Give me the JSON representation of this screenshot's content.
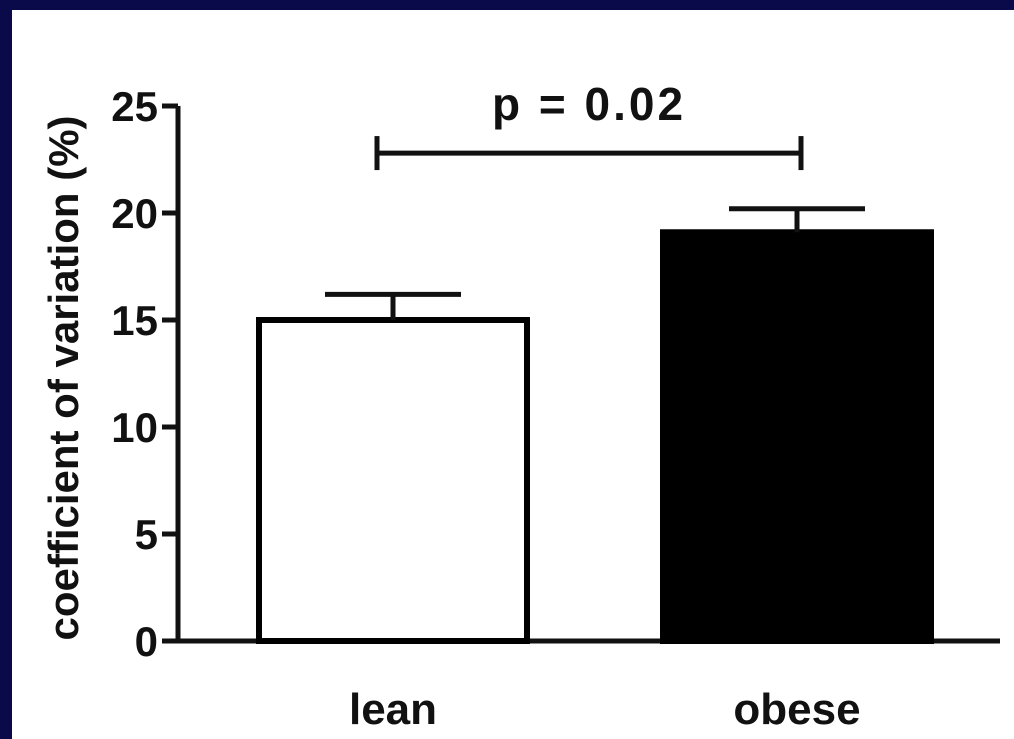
{
  "chart_data": {
    "type": "bar",
    "categories": [
      "lean",
      "obese"
    ],
    "values": [
      15.0,
      19.1
    ],
    "errors": [
      1.2,
      1.1
    ],
    "bar_colors": [
      "#ffffff",
      "#000000"
    ],
    "bar_edge_color": "#000000",
    "ylabel": "coefficient of variation (%)",
    "xlabel": "",
    "ylim": [
      0,
      25
    ],
    "yticks": [
      0,
      5,
      10,
      15,
      20,
      25
    ],
    "ytick_labels": [
      "0",
      "5",
      "10",
      "15",
      "20",
      "25"
    ],
    "grid": false,
    "legend": "none",
    "annotation": {
      "text": "p = 0.02",
      "between": [
        "lean",
        "obese"
      ],
      "y": 22.8
    }
  },
  "colors": {
    "frame": "#0a0a4a",
    "background": "#ffffff",
    "ink": "#111111"
  }
}
